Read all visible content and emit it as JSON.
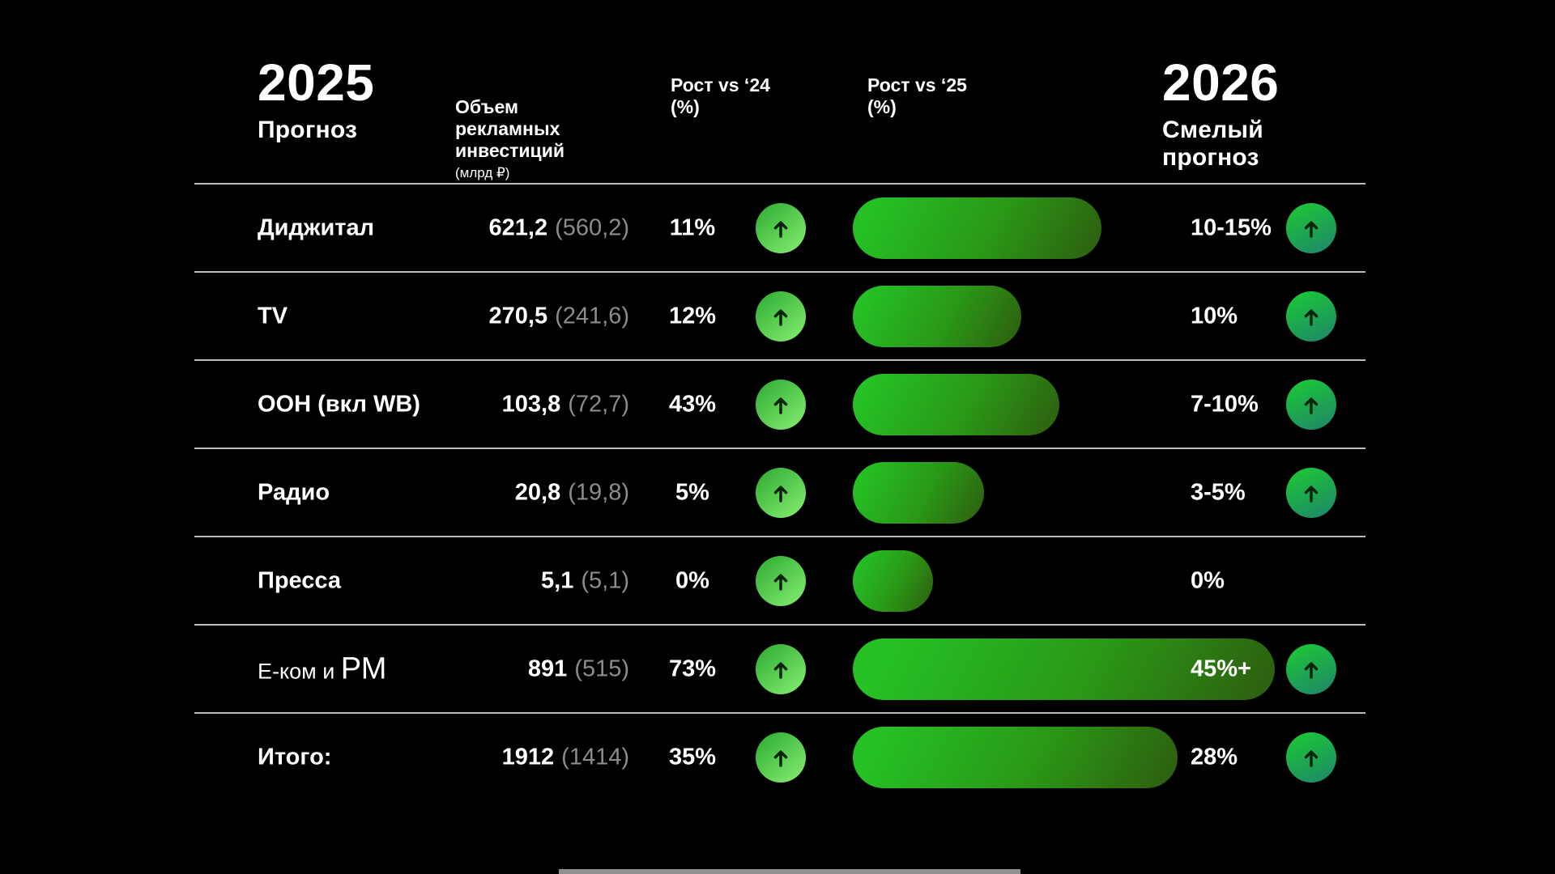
{
  "slide": {
    "header": {
      "left_year": "2025",
      "left_sub": "Прогноз",
      "col_volume": "Объем\nрекламных\nинвестиций",
      "col_volume_unit": "(млрд ₽)",
      "col_growth24": "Рост vs ‘24\n(%)",
      "col_growth25": "Рост vs ‘25\n(%)",
      "right_year": "2026",
      "right_sub": "Смелый прогноз"
    },
    "colors": {
      "background": "#000000",
      "divider": "#bdbdbd",
      "muted_value": "#8c8c8c",
      "bar_gradient_start": "#25c125",
      "bar_gradient_end": "#2e5c10",
      "arrow24_gradient": [
        "#2fae33",
        "#84ea70"
      ],
      "arrow26_gradient": [
        "#1cc638",
        "#1e8a66"
      ]
    },
    "icons": {
      "arrow_up": "arrow-up-icon"
    },
    "rows": [
      {
        "label": "Диджитал",
        "value_2025": "621,2",
        "value_2024": "(560,2)",
        "growth_vs24": "11%",
        "bar_pct": 59,
        "forecast_2026": "10-15%",
        "arrow_2026": true
      },
      {
        "label": "TV",
        "value_2025": "270,5",
        "value_2024": "(241,6)",
        "growth_vs24": "12%",
        "bar_pct": 40,
        "forecast_2026": "10%",
        "arrow_2026": true
      },
      {
        "label": "OOH (вкл WB)",
        "value_2025": "103,8",
        "value_2024": "(72,7)",
        "growth_vs24": "43%",
        "bar_pct": 49,
        "forecast_2026": "7-10%",
        "arrow_2026": true
      },
      {
        "label": "Радио",
        "value_2025": "20,8",
        "value_2024": "(19,8)",
        "growth_vs24": "5%",
        "bar_pct": 31,
        "forecast_2026": "3-5%",
        "arrow_2026": true
      },
      {
        "label": "Пресса",
        "value_2025": "5,1",
        "value_2024": "(5,1)",
        "growth_vs24": "0%",
        "bar_pct": 19,
        "forecast_2026": "0%",
        "arrow_2026": false
      },
      {
        "label": "Е-ком и РМ",
        "label_parts": [
          {
            "text": "Е-ком и ",
            "style": "light"
          },
          {
            "text": "РМ",
            "style": "big"
          }
        ],
        "value_2025": "891",
        "value_2024": "(515)",
        "growth_vs24": "73%",
        "bar_pct": 100,
        "forecast_2026": "45%+",
        "arrow_2026": true
      },
      {
        "label": "Итого:",
        "value_2025": "1912",
        "value_2024": "(1414)",
        "growth_vs24": "35%",
        "bar_pct": 77,
        "forecast_2026": "28%",
        "arrow_2026": true
      }
    ]
  },
  "chart_data": {
    "type": "bar",
    "title": "2025 Прогноз / 2026 Смелый прогноз",
    "categories": [
      "Диджитал",
      "TV",
      "OOH (вкл WB)",
      "Радио",
      "Пресса",
      "Е-ком и РМ",
      "Итого:"
    ],
    "series": [
      {
        "name": "Объем рекламных инвестиций 2025 (млрд ₽)",
        "values": [
          621.2,
          270.5,
          103.8,
          20.8,
          5.1,
          891,
          1912
        ]
      },
      {
        "name": "Объем рекламных инвестиций 2024 (млрд ₽)",
        "values": [
          560.2,
          241.6,
          72.7,
          19.8,
          5.1,
          515,
          1414
        ]
      },
      {
        "name": "Рост vs ‘24 (%)",
        "values": [
          11,
          12,
          43,
          5,
          0,
          73,
          35
        ]
      },
      {
        "name": "Рост vs ‘25 — ширина бара (% от максимального)",
        "values": [
          59,
          40,
          49,
          31,
          19,
          100,
          77
        ]
      },
      {
        "name": "2026 Смелый прогноз",
        "values": [
          "10-15%",
          "10%",
          "7-10%",
          "3-5%",
          "0%",
          "45%+",
          "28%"
        ]
      }
    ],
    "legend_position": "none",
    "grid": false
  }
}
